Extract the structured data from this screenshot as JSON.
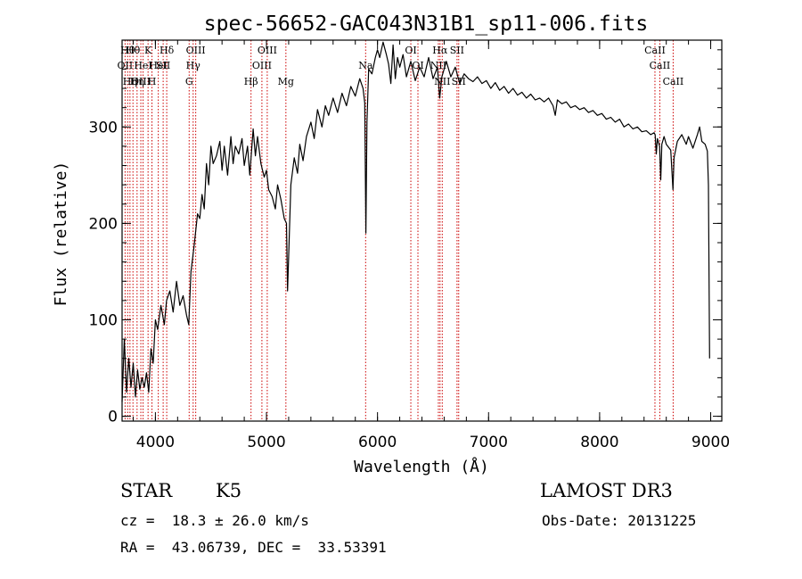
{
  "chart_data": {
    "type": "line",
    "title": "spec-56652-GAC043N31B1_sp11-006.fits",
    "xlabel": "Wavelength (Å)",
    "ylabel": "Flux (relative)",
    "xlim": [
      3700,
      9100
    ],
    "ylim": [
      -5,
      390
    ],
    "xticks": [
      4000,
      5000,
      6000,
      7000,
      8000,
      9000
    ],
    "yticks": [
      0,
      100,
      200,
      300
    ],
    "x_minor_step": 200,
    "y_minor_step": 20,
    "line_color": "#000000",
    "marker_color": "#cc0000",
    "series": [
      {
        "name": "flux",
        "points": [
          [
            3700,
            15
          ],
          [
            3720,
            80
          ],
          [
            3740,
            25
          ],
          [
            3760,
            60
          ],
          [
            3780,
            30
          ],
          [
            3800,
            55
          ],
          [
            3820,
            20
          ],
          [
            3840,
            48
          ],
          [
            3860,
            28
          ],
          [
            3880,
            40
          ],
          [
            3900,
            30
          ],
          [
            3920,
            45
          ],
          [
            3940,
            25
          ],
          [
            3960,
            70
          ],
          [
            3980,
            55
          ],
          [
            4000,
            100
          ],
          [
            4020,
            90
          ],
          [
            4050,
            115
          ],
          [
            4080,
            95
          ],
          [
            4100,
            120
          ],
          [
            4130,
            130
          ],
          [
            4160,
            108
          ],
          [
            4190,
            140
          ],
          [
            4220,
            115
          ],
          [
            4250,
            125
          ],
          [
            4280,
            105
          ],
          [
            4300,
            95
          ],
          [
            4320,
            150
          ],
          [
            4350,
            178
          ],
          [
            4380,
            210
          ],
          [
            4400,
            205
          ],
          [
            4420,
            230
          ],
          [
            4440,
            215
          ],
          [
            4460,
            262
          ],
          [
            4480,
            240
          ],
          [
            4500,
            280
          ],
          [
            4520,
            262
          ],
          [
            4550,
            270
          ],
          [
            4580,
            285
          ],
          [
            4600,
            255
          ],
          [
            4620,
            280
          ],
          [
            4650,
            250
          ],
          [
            4680,
            290
          ],
          [
            4700,
            262
          ],
          [
            4720,
            280
          ],
          [
            4750,
            272
          ],
          [
            4780,
            288
          ],
          [
            4800,
            260
          ],
          [
            4830,
            280
          ],
          [
            4850,
            250
          ],
          [
            4880,
            298
          ],
          [
            4900,
            270
          ],
          [
            4920,
            290
          ],
          [
            4950,
            262
          ],
          [
            4980,
            248
          ],
          [
            5000,
            255
          ],
          [
            5020,
            235
          ],
          [
            5050,
            228
          ],
          [
            5080,
            215
          ],
          [
            5100,
            240
          ],
          [
            5130,
            225
          ],
          [
            5160,
            205
          ],
          [
            5180,
            200
          ],
          [
            5190,
            130
          ],
          [
            5200,
            165
          ],
          [
            5220,
            240
          ],
          [
            5250,
            268
          ],
          [
            5280,
            252
          ],
          [
            5300,
            282
          ],
          [
            5330,
            265
          ],
          [
            5360,
            290
          ],
          [
            5400,
            305
          ],
          [
            5430,
            288
          ],
          [
            5460,
            318
          ],
          [
            5500,
            300
          ],
          [
            5530,
            322
          ],
          [
            5560,
            312
          ],
          [
            5600,
            330
          ],
          [
            5640,
            315
          ],
          [
            5680,
            335
          ],
          [
            5720,
            322
          ],
          [
            5760,
            342
          ],
          [
            5800,
            332
          ],
          [
            5840,
            350
          ],
          [
            5870,
            340
          ],
          [
            5885,
            325
          ],
          [
            5895,
            190
          ],
          [
            5905,
            305
          ],
          [
            5920,
            360
          ],
          [
            5950,
            355
          ],
          [
            5980,
            372
          ],
          [
            6000,
            380
          ],
          [
            6020,
            372
          ],
          [
            6050,
            388
          ],
          [
            6080,
            375
          ],
          [
            6100,
            365
          ],
          [
            6120,
            345
          ],
          [
            6140,
            385
          ],
          [
            6160,
            350
          ],
          [
            6180,
            372
          ],
          [
            6200,
            362
          ],
          [
            6230,
            375
          ],
          [
            6260,
            352
          ],
          [
            6300,
            368
          ],
          [
            6340,
            348
          ],
          [
            6380,
            362
          ],
          [
            6420,
            352
          ],
          [
            6460,
            372
          ],
          [
            6500,
            350
          ],
          [
            6540,
            362
          ],
          [
            6560,
            330
          ],
          [
            6580,
            352
          ],
          [
            6620,
            368
          ],
          [
            6660,
            352
          ],
          [
            6700,
            362
          ],
          [
            6740,
            345
          ],
          [
            6780,
            355
          ],
          [
            6820,
            350
          ],
          [
            6860,
            347
          ],
          [
            6900,
            352
          ],
          [
            6940,
            345
          ],
          [
            6980,
            348
          ],
          [
            7020,
            340
          ],
          [
            7060,
            346
          ],
          [
            7100,
            338
          ],
          [
            7140,
            342
          ],
          [
            7180,
            335
          ],
          [
            7220,
            340
          ],
          [
            7260,
            333
          ],
          [
            7300,
            336
          ],
          [
            7340,
            330
          ],
          [
            7380,
            334
          ],
          [
            7420,
            328
          ],
          [
            7460,
            330
          ],
          [
            7500,
            326
          ],
          [
            7540,
            330
          ],
          [
            7580,
            322
          ],
          [
            7600,
            312
          ],
          [
            7620,
            328
          ],
          [
            7660,
            324
          ],
          [
            7700,
            326
          ],
          [
            7740,
            320
          ],
          [
            7780,
            322
          ],
          [
            7820,
            318
          ],
          [
            7860,
            320
          ],
          [
            7900,
            315
          ],
          [
            7940,
            317
          ],
          [
            7980,
            312
          ],
          [
            8020,
            314
          ],
          [
            8060,
            308
          ],
          [
            8100,
            310
          ],
          [
            8140,
            305
          ],
          [
            8180,
            308
          ],
          [
            8220,
            300
          ],
          [
            8260,
            303
          ],
          [
            8300,
            298
          ],
          [
            8340,
            300
          ],
          [
            8380,
            295
          ],
          [
            8420,
            296
          ],
          [
            8460,
            292
          ],
          [
            8490,
            294
          ],
          [
            8500,
            292
          ],
          [
            8510,
            272
          ],
          [
            8520,
            288
          ],
          [
            8540,
            280
          ],
          [
            8550,
            245
          ],
          [
            8560,
            282
          ],
          [
            8580,
            290
          ],
          [
            8600,
            282
          ],
          [
            8640,
            276
          ],
          [
            8660,
            235
          ],
          [
            8670,
            268
          ],
          [
            8700,
            285
          ],
          [
            8740,
            292
          ],
          [
            8780,
            282
          ],
          [
            8800,
            290
          ],
          [
            8840,
            278
          ],
          [
            8880,
            292
          ],
          [
            8900,
            300
          ],
          [
            8920,
            285
          ],
          [
            8950,
            282
          ],
          [
            8970,
            275
          ],
          [
            8980,
            240
          ],
          [
            8990,
            60
          ]
        ]
      }
    ],
    "spectral_lines": [
      {
        "x": 3727,
        "label": "OII",
        "row": 2
      },
      {
        "x": 3750,
        "label": "Hθ",
        "row": 1
      },
      {
        "x": 3771,
        "label": "Hη",
        "row": 3
      },
      {
        "x": 3798,
        "label": "Hθ",
        "row": 1
      },
      {
        "x": 3835,
        "label": "Hη",
        "row": 3
      },
      {
        "x": 3869,
        "label": "OIII",
        "row": 3
      },
      {
        "x": 3889,
        "label": "HeI",
        "row": 2
      },
      {
        "x": 3934,
        "label": "K",
        "row": 1
      },
      {
        "x": 3969,
        "label": "H",
        "row": 3
      },
      {
        "x": 4026,
        "label": "HeI",
        "row": 2
      },
      {
        "x": 4070,
        "label": "SII",
        "row": 2
      },
      {
        "x": 4102,
        "label": "Hδ",
        "row": 1
      },
      {
        "x": 4304,
        "label": "G",
        "row": 3
      },
      {
        "x": 4340,
        "label": "Hγ",
        "row": 2
      },
      {
        "x": 4363,
        "label": "OIII",
        "row": 1
      },
      {
        "x": 4861,
        "label": "Hβ",
        "row": 3
      },
      {
        "x": 4959,
        "label": "OIII",
        "row": 2
      },
      {
        "x": 5007,
        "label": "OIII",
        "row": 1
      },
      {
        "x": 5175,
        "label": "Mg",
        "row": 3
      },
      {
        "x": 5893,
        "label": "Na",
        "row": 2
      },
      {
        "x": 6300,
        "label": "OI",
        "row": 1
      },
      {
        "x": 6364,
        "label": "OI",
        "row": 2
      },
      {
        "x": 6548,
        "label": "NII",
        "row": 2
      },
      {
        "x": 6563,
        "label": "Hα",
        "row": 1
      },
      {
        "x": 6583,
        "label": "NII",
        "row": 3
      },
      {
        "x": 6716,
        "label": "SII",
        "row": 1
      },
      {
        "x": 6731,
        "label": "SII",
        "row": 3
      },
      {
        "x": 8498,
        "label": "CaII",
        "row": 1
      },
      {
        "x": 8542,
        "label": "CaII",
        "row": 2
      },
      {
        "x": 8662,
        "label": "CaII",
        "row": 3
      }
    ]
  },
  "info": {
    "object_class": "STAR",
    "subclass": "K5",
    "survey": "LAMOST DR3",
    "redshift": "cz =  18.3 ± 26.0 km/s",
    "obs_date": "Obs-Date: 20131225",
    "coords": "RA =  43.06739, DEC =  33.53391"
  }
}
